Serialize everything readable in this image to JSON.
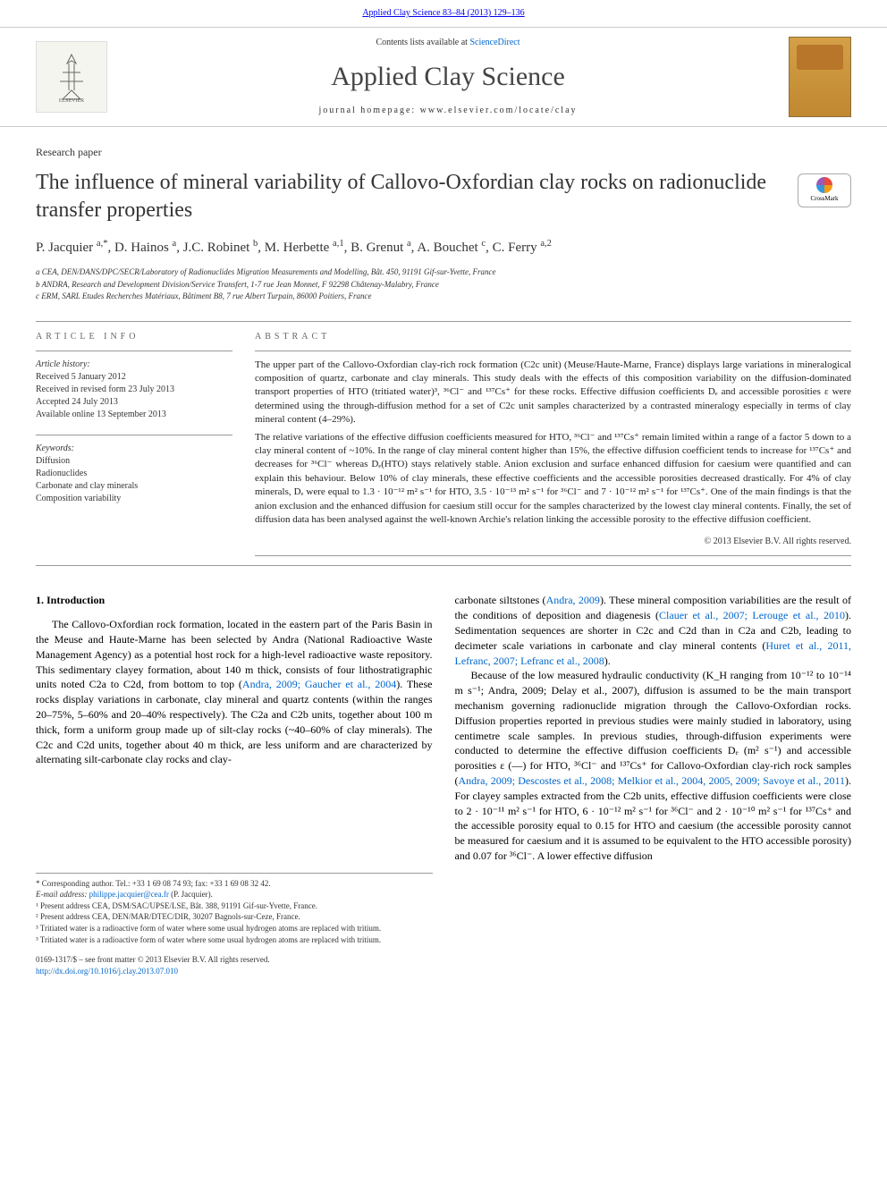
{
  "header_link": "Applied Clay Science 83–84 (2013) 129–136",
  "banner": {
    "contents_text": "Contents lists available at ",
    "contents_link": "ScienceDirect",
    "journal_name": "Applied Clay Science",
    "homepage_text": "journal homepage: www.elsevier.com/locate/clay"
  },
  "paper_type": "Research paper",
  "title": "The influence of mineral variability of Callovo-Oxfordian clay rocks on radionuclide transfer properties",
  "crossmark": "CrossMark",
  "authors_html": "P. Jacquier <sup>a,*</sup>, D. Hainos <sup>a</sup>, J.C. Robinet <sup>b</sup>, M. Herbette <sup>a,1</sup>, B. Grenut <sup>a</sup>, A. Bouchet <sup>c</sup>, C. Ferry <sup>a,2</sup>",
  "affiliations": [
    "a CEA, DEN/DANS/DPC/SECR/Laboratory of Radionuclides Migration Measurements and Modelling, Bât. 450, 91191 Gif-sur-Yvette, France",
    "b ANDRA, Research and Development Division/Service Transfert, 1-7 rue Jean Monnet, F 92298 Châtenay-Malabry, France",
    "c ERM, SARL Etudes Recherches Matériaux, Bâtiment B8, 7 rue Albert Turpain, 86000 Poitiers, France"
  ],
  "article_info": {
    "head": "ARTICLE INFO",
    "history_label": "Article history:",
    "history": [
      "Received 5 January 2012",
      "Received in revised form 23 July 2013",
      "Accepted 24 July 2013",
      "Available online 13 September 2013"
    ],
    "keywords_label": "Keywords:",
    "keywords": [
      "Diffusion",
      "Radionuclides",
      "Carbonate and clay minerals",
      "Composition variability"
    ]
  },
  "abstract": {
    "head": "ABSTRACT",
    "p1": "The upper part of the Callovo-Oxfordian clay-rich rock formation (C2c unit) (Meuse/Haute-Marne, France) displays large variations in mineralogical composition of quartz, carbonate and clay minerals. This study deals with the effects of this composition variability on the diffusion-dominated transport properties of HTO (tritiated water)³, ³⁶Cl⁻ and ¹³⁷Cs⁺ for these rocks. Effective diffusion coefficients Dₑ and accessible porosities ε were determined using the through-diffusion method for a set of C2c unit samples characterized by a contrasted mineralogy especially in terms of clay mineral content (4–29%).",
    "p2": "The relative variations of the effective diffusion coefficients measured for HTO, ³⁶Cl⁻ and ¹³⁷Cs⁺ remain limited within a range of a factor 5 down to a clay mineral content of ~10%. In the range of clay mineral content higher than 15%, the effective diffusion coefficient tends to increase for ¹³⁷Cs⁺ and decreases for ³⁶Cl⁻ whereas Dₑ(HTO) stays relatively stable. Anion exclusion and surface enhanced diffusion for caesium were quantified and can explain this behaviour. Below 10% of clay minerals, these effective coefficients and the accessible porosities decreased drastically. For 4% of clay minerals, Dₑ were equal to 1.3 · 10⁻¹² m² s⁻¹ for HTO, 3.5 · 10⁻¹³ m² s⁻¹ for ³⁶Cl⁻ and 7 · 10⁻¹² m² s⁻¹ for ¹³⁷Cs⁺. One of the main findings is that the anion exclusion and the enhanced diffusion for caesium still occur for the samples characterized by the lowest clay mineral contents. Finally, the set of diffusion data has been analysed against the well-known Archie's relation linking the accessible porosity to the effective diffusion coefficient.",
    "copyright": "© 2013 Elsevier B.V. All rights reserved."
  },
  "intro": {
    "head": "1. Introduction",
    "col1": "The Callovo-Oxfordian rock formation, located in the eastern part of the Paris Basin in the Meuse and Haute-Marne has been selected by Andra (National Radioactive Waste Management Agency) as a potential host rock for a high-level radioactive waste repository. This sedimentary clayey formation, about 140 m thick, consists of four lithostratigraphic units noted C2a to C2d, from bottom to top (Andra, 2009; Gaucher et al., 2004). These rocks display variations in carbonate, clay mineral and quartz contents (within the ranges 20–75%, 5–60% and 20–40% respectively). The C2a and C2b units, together about 100 m thick, form a uniform group made up of silt-clay rocks (~40–60% of clay minerals). The C2c and C2d units, together about 40 m thick, are less uniform and are characterized by alternating silt-carbonate clay rocks and clay-",
    "col2": "carbonate siltstones (Andra, 2009). These mineral composition variabilities are the result of the conditions of deposition and diagenesis (Clauer et al., 2007; Lerouge et al., 2010). Sedimentation sequences are shorter in C2c and C2d than in C2a and C2b, leading to decimeter scale variations in carbonate and clay mineral contents (Huret et al., 2011, Lefranc, 2007; Lefranc et al., 2008).",
    "col2b": "Because of the low measured hydraulic conductivity (K_H ranging from 10⁻¹² to 10⁻¹⁴ m s⁻¹; Andra, 2009; Delay et al., 2007), diffusion is assumed to be the main transport mechanism governing radionuclide migration through the Callovo-Oxfordian rocks. Diffusion properties reported in previous studies were mainly studied in laboratory, using centimetre scale samples. In previous studies, through-diffusion experiments were conducted to determine the effective diffusion coefficients Dₑ (m² s⁻¹) and accessible porosities ε (—) for HTO, ³⁶Cl⁻ and ¹³⁷Cs⁺ for Callovo-Oxfordian clay-rich rock samples (Andra, 2009; Descostes et al., 2008; Melkior et al., 2004, 2005, 2009; Savoye et al., 2011). For clayey samples extracted from the C2b units, effective diffusion coefficients were close to 2 · 10⁻¹¹ m² s⁻¹ for HTO, 6 · 10⁻¹² m² s⁻¹ for ³⁶Cl⁻ and 2 · 10⁻¹⁰ m² s⁻¹ for ¹³⁷Cs⁺ and the accessible porosity equal to 0.15 for HTO and caesium (the accessible porosity cannot be measured for caesium and it is assumed to be equivalent to the HTO accessible porosity) and 0.07 for ³⁶Cl⁻. A lower effective diffusion"
  },
  "footnotes": {
    "corr": "* Corresponding author. Tel.: +33 1 69 08 74 93; fax: +33 1 69 08 32 42.",
    "email_label": "E-mail address: ",
    "email": "philippe.jacquier@cea.fr",
    "email_suffix": " (P. Jacquier).",
    "n1": "¹ Present address CEA, DSM/SAC/UPSE/LSE, Bât. 388, 91191 Gif-sur-Yvette, France.",
    "n2": "² Present address CEA, DEN/MAR/DTEC/DIR, 30207 Bagnols-sur-Ceze, France.",
    "n3": "³ Tritiated water is a radioactive form of water where some usual hydrogen atoms are replaced with tritium.",
    "n3b": "³ Tritiated water is a radioactive form of water where some usual hydrogen atoms are replaced with tritium."
  },
  "footer": {
    "issn": "0169-1317/$ – see front matter © 2013 Elsevier B.V. All rights reserved.",
    "doi": "http://dx.doi.org/10.1016/j.clay.2013.07.010"
  }
}
